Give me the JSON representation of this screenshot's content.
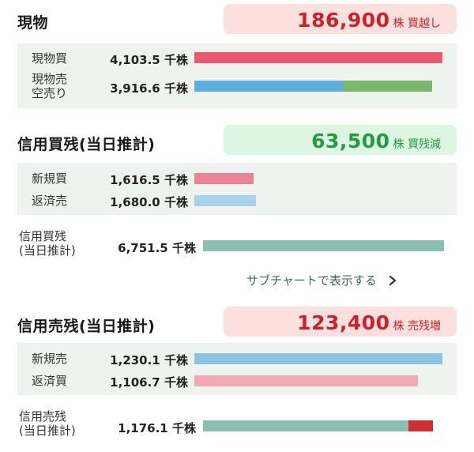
{
  "genbutsu": {
    "title": "現物",
    "badge_value": "186,900",
    "badge_unit": "株 買越し",
    "rows": [
      {
        "label": "現物買",
        "value": "4,103.5",
        "unit": "千株"
      },
      {
        "label": "現物売\n空売り",
        "value": "3,916.6",
        "unit": "千株"
      }
    ]
  },
  "shinyo_kai": {
    "title": "信用買残(当日推計)",
    "badge_value": "63,500",
    "badge_unit": "株 買残減",
    "rows": [
      {
        "label": "新規買",
        "value": "1,616.5",
        "unit": "千株"
      },
      {
        "label": "返済売",
        "value": "1,680.0",
        "unit": "千株"
      }
    ],
    "total": {
      "label": "信用買残\n(当日推計)",
      "value": "6,751.5",
      "unit": "千株"
    }
  },
  "subchart_link": {
    "label": "サブチャートで表示する",
    "icon": "chevron-right-icon"
  },
  "shinyo_uri": {
    "title": "信用売残(当日推計)",
    "badge_value": "123,400",
    "badge_unit": "株 売残増",
    "rows": [
      {
        "label": "新規売",
        "value": "1,230.1",
        "unit": "千株"
      },
      {
        "label": "返済買",
        "value": "1,106.7",
        "unit": "千株"
      }
    ],
    "total": {
      "label": "信用売残\n(当日推計)",
      "value": "1,176.1",
      "unit": "千株"
    }
  },
  "colors": {
    "buy_red": "#e85a72",
    "sell_blue": "#5eaedb",
    "short_green": "#7ab86c",
    "new_buy_pink": "#ee8396",
    "repay_sell_lightblue": "#a9d3ea",
    "balance_teal": "#8cbfb0",
    "increase_red": "#cf2f33",
    "new_sell_blue": "#8cc3e2",
    "repay_buy_pink": "#f1a9b4"
  }
}
